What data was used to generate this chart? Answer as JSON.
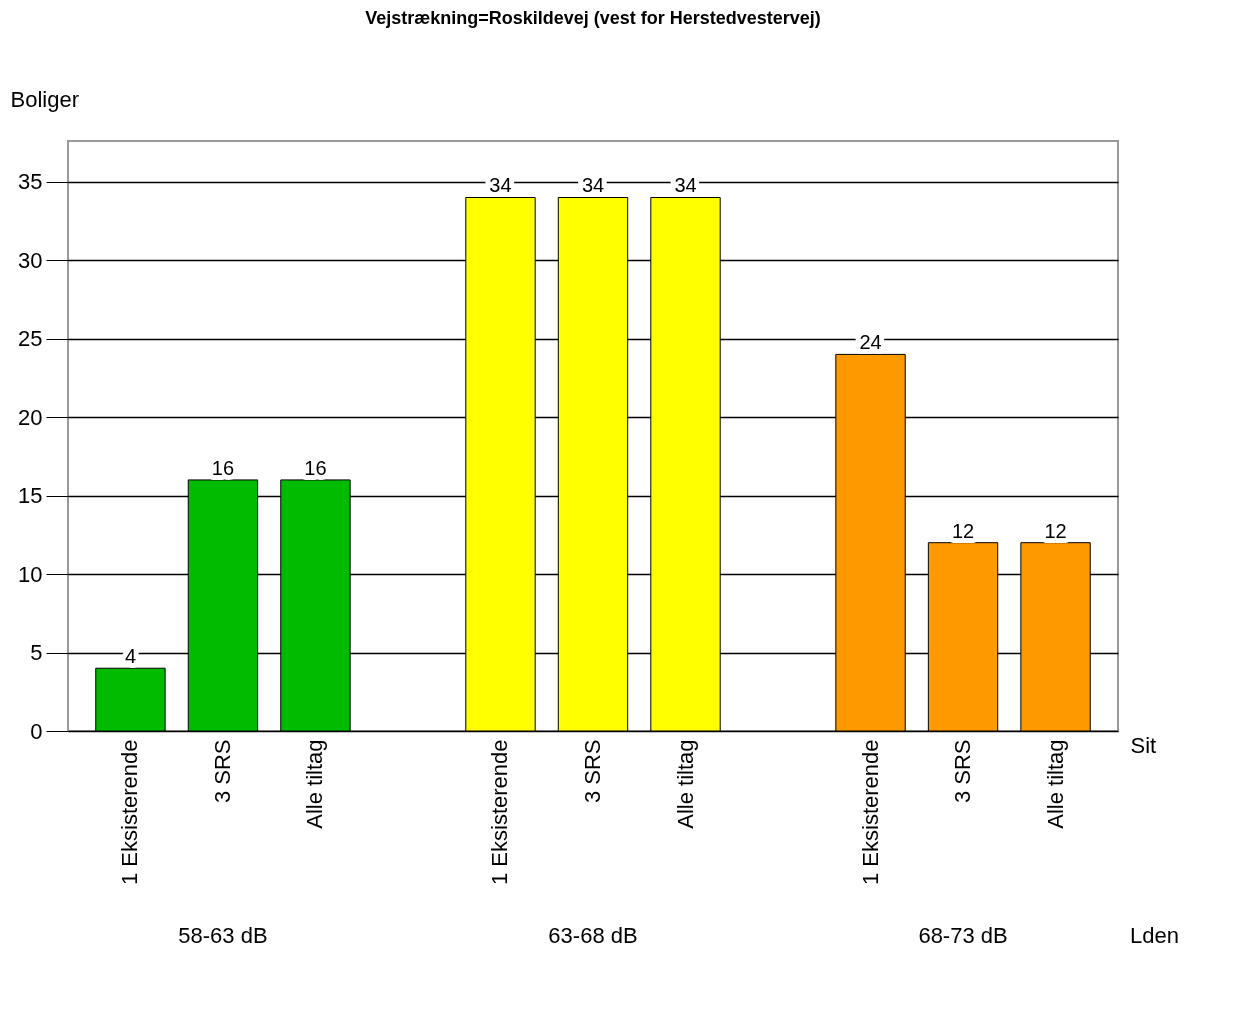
{
  "chart_data": {
    "type": "bar",
    "title": "Vejstrækning=Roskildevej (vest for Herstedvestervej)",
    "ylabel": "Boliger",
    "xlabel": "Sit",
    "categories": [
      "1 Eksisterende",
      "3 SRS",
      "Alle tiltag",
      "1 Eksisterende",
      "3 SRS",
      "Alle tiltag",
      "1 Eksisterende",
      "3 SRS",
      "Alle tiltag"
    ],
    "values": [
      4,
      16,
      16,
      34,
      34,
      34,
      24,
      12,
      12
    ],
    "colors": [
      "#00bb00",
      "#00bb00",
      "#00bb00",
      "#ffff00",
      "#ffff00",
      "#ffff00",
      "#ff9900",
      "#ff9900",
      "#ff9900"
    ],
    "annotations": [
      "58-63 dB",
      "63-68 dB",
      "68-73 dB",
      "Lden"
    ],
    "ylim": [
      0,
      37.6
    ],
    "yticks": [
      0,
      5,
      10,
      15,
      20,
      25,
      30,
      35
    ],
    "grid": "y",
    "data_labels": true,
    "legend": false
  }
}
